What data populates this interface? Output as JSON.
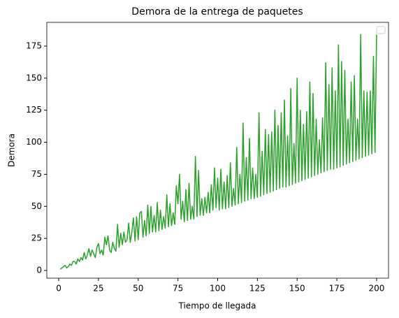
{
  "chart_data": {
    "type": "line",
    "title": "Demora de la entrega de paquetes",
    "xlabel": "Tiempo de llegada",
    "ylabel": "Demora",
    "legend": "upper right",
    "x": [
      1,
      2,
      3,
      4,
      5,
      6,
      7,
      8,
      9,
      10,
      11,
      12,
      13,
      14,
      15,
      16,
      17,
      18,
      19,
      20,
      21,
      22,
      23,
      24,
      25,
      26,
      27,
      28,
      29,
      30,
      31,
      32,
      33,
      34,
      35,
      36,
      37,
      38,
      39,
      40,
      41,
      42,
      43,
      44,
      45,
      46,
      47,
      48,
      49,
      50,
      51,
      52,
      53,
      54,
      55,
      56,
      57,
      58,
      59,
      60,
      61,
      62,
      63,
      64,
      65,
      66,
      67,
      68,
      69,
      70,
      71,
      72,
      73,
      74,
      75,
      76,
      77,
      78,
      79,
      80,
      81,
      82,
      83,
      84,
      85,
      86,
      87,
      88,
      89,
      90,
      91,
      92,
      93,
      94,
      95,
      96,
      97,
      98,
      99,
      100,
      101,
      102,
      103,
      104,
      105,
      106,
      107,
      108,
      109,
      110,
      111,
      112,
      113,
      114,
      115,
      116,
      117,
      118,
      119,
      120,
      121,
      122,
      123,
      124,
      125,
      126,
      127,
      128,
      129,
      130,
      131,
      132,
      133,
      134,
      135,
      136,
      137,
      138,
      139,
      140,
      141,
      142,
      143,
      144,
      145,
      146,
      147,
      148,
      149,
      150,
      151,
      152,
      153,
      154,
      155,
      156,
      157,
      158,
      159,
      160,
      161,
      162,
      163,
      164,
      165,
      166,
      167,
      168,
      169,
      170,
      171,
      172,
      173,
      174,
      175,
      176,
      177,
      178,
      179,
      180,
      181,
      182,
      183,
      184,
      185,
      186,
      187,
      188,
      189,
      190,
      191,
      192,
      193,
      194,
      195,
      196,
      197,
      198,
      199,
      200
    ],
    "series": [
      {
        "color": "#2ca02c",
        "values": [
          1,
          2,
          3,
          4,
          2,
          3,
          5,
          4,
          7,
          7,
          5,
          9,
          7,
          10,
          8,
          14,
          9,
          12,
          17,
          11,
          16,
          13,
          10,
          18,
          21,
          13,
          16,
          12,
          26,
          20,
          27,
          16,
          14,
          22,
          17,
          15,
          36,
          18,
          29,
          20,
          30,
          22,
          24,
          37,
          22,
          30,
          41,
          23,
          42,
          24,
          45,
          46,
          26,
          39,
          27,
          51,
          29,
          50,
          30,
          43,
          30,
          53,
          31,
          47,
          32,
          42,
          33,
          59,
          34,
          52,
          35,
          45,
          36,
          66,
          52,
          75,
          40,
          54,
          38,
          63,
          39,
          68,
          40,
          50,
          40,
          89,
          42,
          78,
          43,
          56,
          43,
          57,
          45,
          61,
          45,
          67,
          47,
          80,
          49,
          72,
          47,
          79,
          48,
          69,
          48,
          74,
          49,
          84,
          50,
          64,
          51,
          96,
          52,
          75,
          53,
          115,
          54,
          88,
          55,
          103,
          56,
          80,
          56,
          75,
          57,
          123,
          58,
          93,
          59,
          110,
          60,
          106,
          61,
          108,
          62,
          125,
          63,
          113,
          64,
          123,
          65,
          133,
          65,
          105,
          66,
          142,
          67,
          99,
          68,
          150,
          69,
          125,
          70,
          114,
          71,
          124,
          72,
          147,
          73,
          138,
          74,
          118,
          75,
          102,
          76,
          119,
          77,
          162,
          78,
          145,
          79,
          158,
          79,
          140,
          80,
          176,
          81,
          163,
          82,
          156,
          83,
          118,
          84,
          147,
          85,
          152,
          86,
          118,
          87,
          184,
          88,
          140,
          89,
          139,
          90,
          140,
          91,
          167,
          92,
          184
        ]
      }
    ],
    "xlim": [
      -7.5,
      207.5
    ],
    "ylim": [
      -6,
      193.5
    ],
    "xticks": [
      0,
      25,
      50,
      75,
      100,
      125,
      150,
      175,
      200
    ],
    "yticks": [
      0,
      25,
      50,
      75,
      100,
      125,
      150,
      175
    ]
  }
}
